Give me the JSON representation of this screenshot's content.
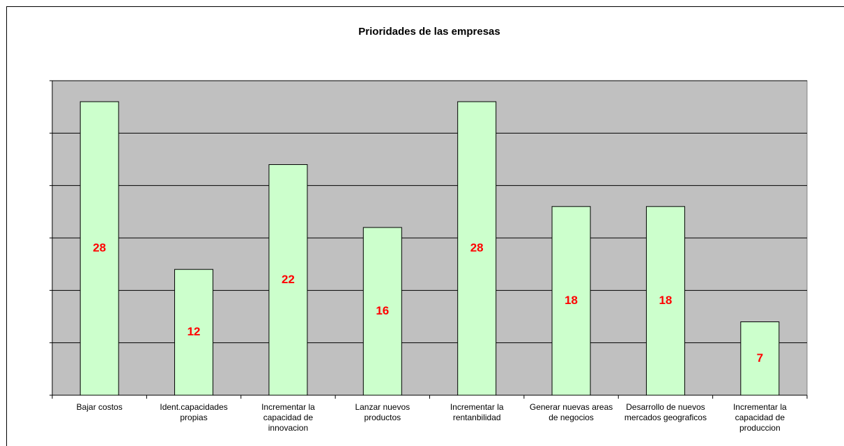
{
  "chart_data": {
    "type": "bar",
    "title": "Prioridades de las empresas",
    "categories": [
      "Bajar costos",
      "Ident.capacidades propias",
      "Incrementar la capacidad de innovacion",
      "Lanzar nuevos productos",
      "Incrementar la rentanbilidad",
      "Generar nuevas areas de negocios",
      "Desarrollo de nuevos mercados geograficos",
      "Incrementar la capacidad de produccion"
    ],
    "values": [
      28,
      12,
      22,
      16,
      28,
      18,
      18,
      7
    ],
    "color": "#ccffcc",
    "label_color": "#ff0000",
    "plot_background": "#c0c0c0",
    "ylim": [
      0,
      30
    ],
    "yticks": [
      0,
      5,
      10,
      15,
      20,
      25,
      30
    ],
    "grid": true
  }
}
